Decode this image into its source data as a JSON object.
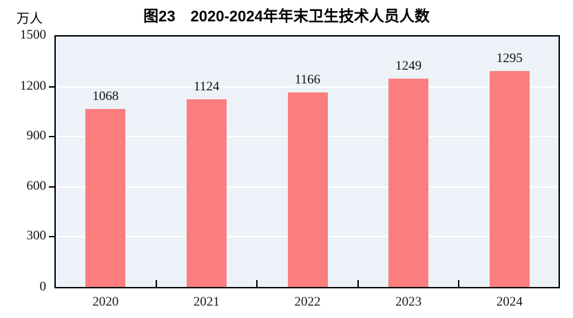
{
  "figure": {
    "title": "图23　2020-2024年年末卫生技术人员人数",
    "unit_label": "万人"
  },
  "chart_data": {
    "type": "bar",
    "title": "图23　2020-2024年年末卫生技术人员人数",
    "ylabel": "万人",
    "xlabel": "",
    "categories": [
      "2020",
      "2021",
      "2022",
      "2023",
      "2024"
    ],
    "values": [
      1068,
      1124,
      1166,
      1249,
      1295
    ],
    "ylim": [
      0,
      1500
    ],
    "yticks": [
      0,
      300,
      600,
      900,
      1200,
      1500
    ],
    "grid": "horizontal",
    "legend": "none",
    "data_labels": [
      "1068",
      "1124",
      "1166",
      "1249",
      "1295"
    ],
    "colors": {
      "bar": "#FB7D7D",
      "plot_background": "#ECF2F7",
      "gridline": "#FFFFFF",
      "axis": "#000000",
      "text": "#111111"
    }
  }
}
